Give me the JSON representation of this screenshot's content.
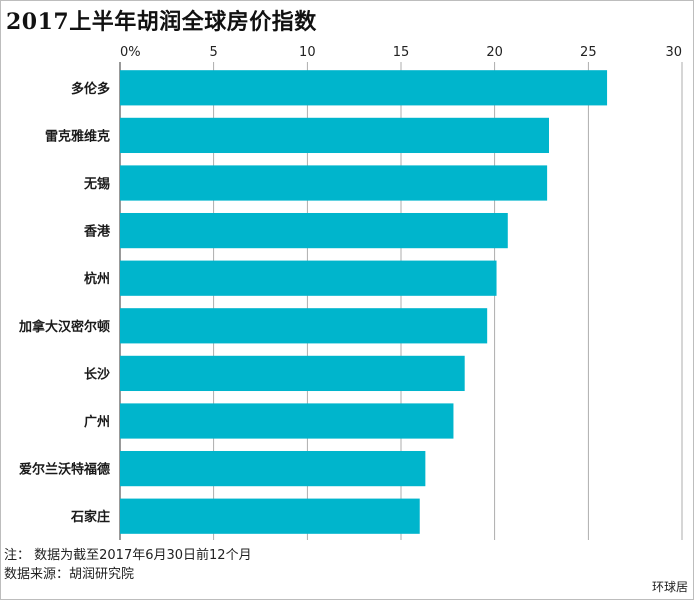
{
  "chart_data": {
    "type": "bar",
    "orientation": "horizontal",
    "title": "2017上半年胡润全球房价指数",
    "categories": [
      "多伦多",
      "雷克雅维克",
      "无锡",
      "香港",
      "杭州",
      "加拿大汉密尔顿",
      "长沙",
      "广州",
      "爱尔兰沃特福德",
      "石家庄"
    ],
    "values": [
      26.0,
      22.9,
      22.8,
      20.7,
      20.1,
      19.6,
      18.4,
      17.8,
      16.3,
      16.0
    ],
    "xlim": [
      0,
      30
    ],
    "x_ticks": [
      0,
      5,
      10,
      15,
      20,
      25,
      30
    ],
    "x_tick_labels": [
      "0%",
      "5",
      "10",
      "15",
      "20",
      "25",
      "30"
    ],
    "x_axis_position": "top",
    "grid": true,
    "bar_color": "#00b5cc"
  },
  "notes": {
    "line1": "注：  数据为截至2017年6月30日前12个月",
    "line2": "数据来源：胡润研究院"
  },
  "source_mark": "环球居"
}
